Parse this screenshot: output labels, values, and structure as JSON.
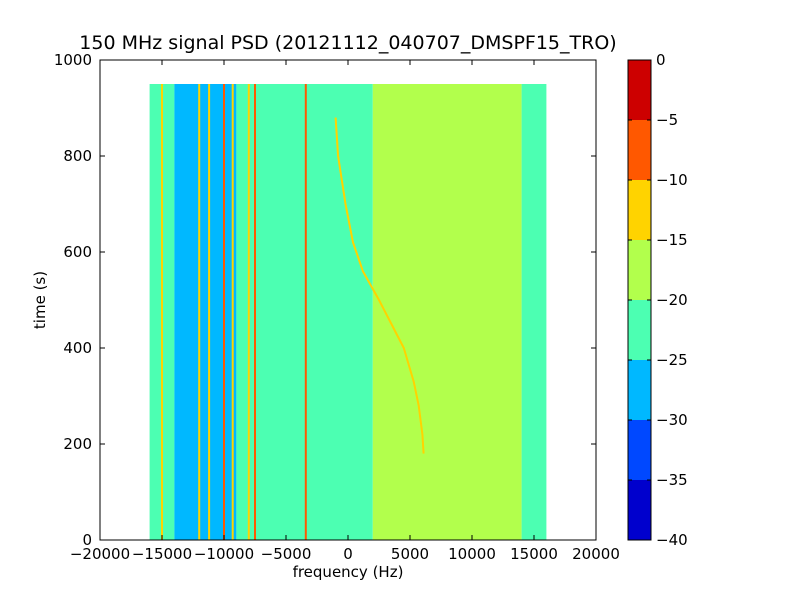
{
  "chart_data": {
    "type": "heatmap",
    "title": "150 MHz signal PSD (20121112_040707_DMSPF15_TRO)",
    "xlabel": "frequency (Hz)",
    "ylabel": "time (s)",
    "xlim": [
      -20000,
      20000
    ],
    "ylim": [
      0,
      1000
    ],
    "xticks": [
      -20000,
      -15000,
      -10000,
      -5000,
      0,
      5000,
      10000,
      15000,
      20000
    ],
    "xtick_labels": [
      "−20000",
      "−15000",
      "−10000",
      "−5000",
      "0",
      "5000",
      "10000",
      "15000",
      "20000"
    ],
    "yticks": [
      0,
      200,
      400,
      600,
      800,
      1000
    ],
    "ytick_labels": [
      "0",
      "200",
      "400",
      "600",
      "800",
      "1000"
    ],
    "data_extent": {
      "freq_range_hz": [
        -16000,
        16000
      ],
      "time_range_s": [
        0,
        950
      ]
    },
    "colorbar": {
      "levels": [
        -40,
        -35,
        -30,
        -25,
        -20,
        -15,
        -10,
        -5,
        0
      ],
      "tick_labels": [
        "−40",
        "−35",
        "−30",
        "−25",
        "−20",
        "−15",
        "−10",
        "−5",
        "0"
      ],
      "colors": [
        "#0000cd",
        "#0048ff",
        "#00b8ff",
        "#4cffb2",
        "#b2ff4c",
        "#ffd300",
        "#ff5800",
        "#cd0000"
      ]
    },
    "background_levels": [
      {
        "freq_range_hz": [
          -16000,
          -14000
        ],
        "level_db": -22.5
      },
      {
        "freq_range_hz": [
          -14000,
          -9000
        ],
        "level_db": -25
      },
      {
        "freq_range_hz": [
          -9000,
          2000
        ],
        "level_db": -22.5
      },
      {
        "freq_range_hz": [
          2000,
          14000
        ],
        "level_db": -17.5
      },
      {
        "freq_range_hz": [
          14000,
          16000
        ],
        "level_db": -22.5
      }
    ],
    "series": [
      {
        "points": [
          [
            -3400,
            0
          ],
          [
            -3400,
            950
          ]
        ],
        "level_db": -7.5
      },
      {
        "points": [
          [
            -7500,
            0
          ],
          [
            -7500,
            950
          ]
        ],
        "level_db": -7.5
      },
      {
        "points": [
          [
            -8000,
            0
          ],
          [
            -8000,
            950
          ]
        ],
        "level_db": -12.5
      },
      {
        "points": [
          [
            -9300,
            0
          ],
          [
            -9300,
            950
          ]
        ],
        "level_db": -12.5
      },
      {
        "points": [
          [
            -10000,
            0
          ],
          [
            -10000,
            950
          ]
        ],
        "level_db": -7.5
      },
      {
        "points": [
          [
            -11200,
            0
          ],
          [
            -11200,
            950
          ]
        ],
        "level_db": -12.5
      },
      {
        "points": [
          [
            -12000,
            0
          ],
          [
            -12000,
            950
          ]
        ],
        "level_db": -12.5
      },
      {
        "points": [
          [
            -15000,
            0
          ],
          [
            -15000,
            950
          ]
        ],
        "level_db": -12.5
      },
      {
        "points": [
          [
            -1000,
            880
          ],
          [
            -800,
            800
          ],
          [
            -200,
            700
          ],
          [
            400,
            620
          ],
          [
            1200,
            560
          ],
          [
            2500,
            500
          ],
          [
            3500,
            450
          ],
          [
            4500,
            400
          ],
          [
            5300,
            330
          ],
          [
            5700,
            280
          ],
          [
            6000,
            220
          ],
          [
            6100,
            180
          ]
        ],
        "level_db": -12.5
      }
    ]
  }
}
